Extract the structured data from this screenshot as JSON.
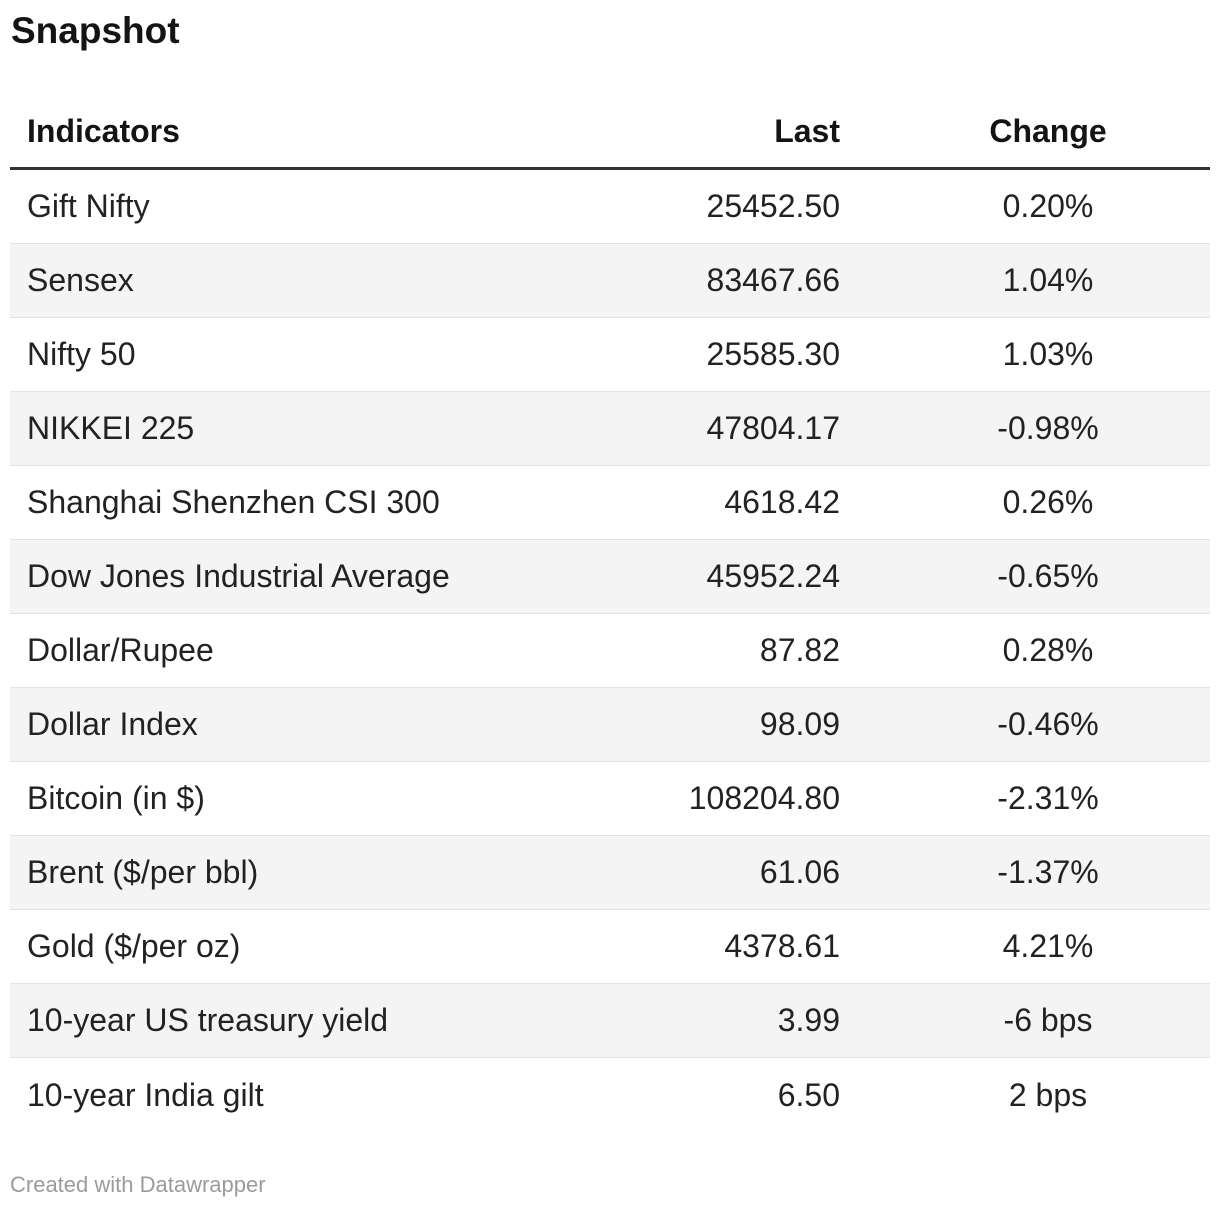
{
  "chart_data": {
    "type": "table",
    "title": "Snapshot",
    "columns": [
      {
        "label": "Indicators",
        "align": "left"
      },
      {
        "label": "Last",
        "align": "right"
      },
      {
        "label": "Change",
        "align": "center"
      }
    ],
    "rows": [
      {
        "indicator": "Gift Nifty",
        "last": "25452.50",
        "change": "0.20%"
      },
      {
        "indicator": "Sensex",
        "last": "83467.66",
        "change": "1.04%"
      },
      {
        "indicator": "Nifty 50",
        "last": "25585.30",
        "change": "1.03%"
      },
      {
        "indicator": "NIKKEI 225",
        "last": "47804.17",
        "change": "-0.98%"
      },
      {
        "indicator": "Shanghai Shenzhen CSI 300",
        "last": "4618.42",
        "change": "0.26%"
      },
      {
        "indicator": "Dow Jones Industrial Average",
        "last": "45952.24",
        "change": "-0.65%"
      },
      {
        "indicator": "Dollar/Rupee",
        "last": "87.82",
        "change": "0.28%"
      },
      {
        "indicator": "Dollar Index",
        "last": "98.09",
        "change": "-0.46%"
      },
      {
        "indicator": "Bitcoin (in $)",
        "last": "108204.80",
        "change": "-2.31%"
      },
      {
        "indicator": "Brent ($/per bbl)",
        "last": "61.06",
        "change": "-1.37%"
      },
      {
        "indicator": "Gold ($/per oz)",
        "last": "4378.61",
        "change": "4.21%"
      },
      {
        "indicator": "10-year US treasury yield",
        "last": "3.99",
        "change": "-6 bps"
      },
      {
        "indicator": "10-year India gilt",
        "last": "6.50",
        "change": "2 bps"
      }
    ],
    "footer": "Created with Datawrapper",
    "layout_hints": {
      "striping": "even-numbered rows shaded",
      "grid": "horizontal row dividers only"
    }
  },
  "colors": {
    "background": "#ffffff",
    "stripe": "#f4f4f4",
    "header_rule": "#333333",
    "row_divider": "#e3e3e3",
    "text": "#1d1d1d",
    "heading_text": "#141414",
    "muted_text": "#9b9b9b"
  }
}
